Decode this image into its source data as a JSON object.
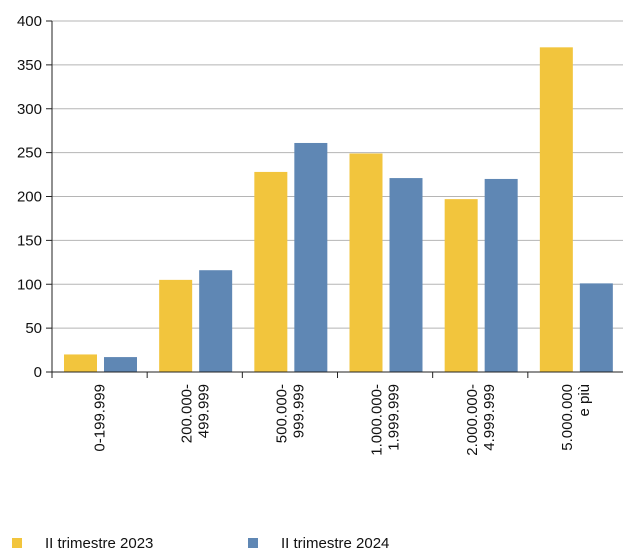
{
  "chart_data": {
    "type": "bar",
    "categories": [
      [
        "0-199.999"
      ],
      [
        "200.000-",
        "499.999"
      ],
      [
        "500.000-",
        "999.999"
      ],
      [
        "1.000.000-",
        "1.999.999"
      ],
      [
        "2.000.000-",
        "4.999.999"
      ],
      [
        "5.000.000",
        "e più"
      ]
    ],
    "series": [
      {
        "name": "II trimestre 2023",
        "color": "#f2c53d",
        "values": [
          20,
          105,
          228,
          249,
          197,
          370
        ]
      },
      {
        "name": "II trimestre 2024",
        "color": "#5f87b4",
        "values": [
          17,
          116,
          261,
          221,
          220,
          101
        ]
      }
    ],
    "ylim": [
      0,
      400
    ],
    "yticks": [
      0,
      50,
      100,
      150,
      200,
      250,
      300,
      350,
      400
    ],
    "grid": true,
    "legend_position": "bottom"
  }
}
